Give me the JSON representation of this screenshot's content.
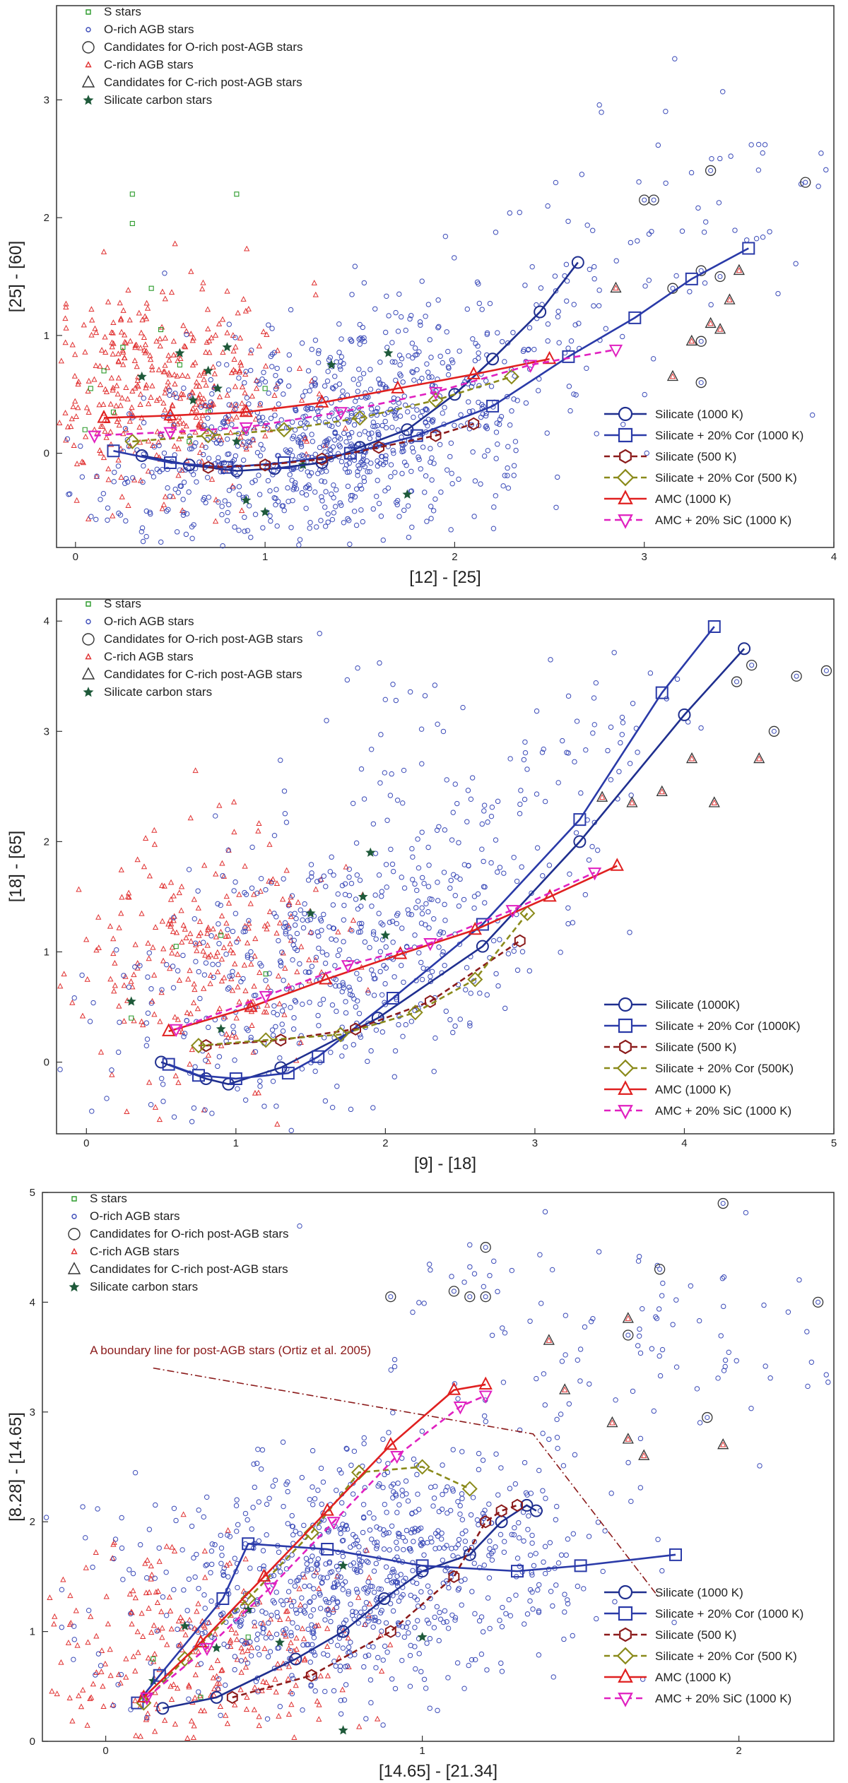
{
  "chart_data": [
    {
      "type": "scatter",
      "xlabel": "[12] - [25]",
      "ylabel": "[25] - [60]",
      "xlim": [
        -0.1,
        4.0
      ],
      "ylim": [
        -0.8,
        3.8
      ],
      "xticks": [
        "0",
        "1",
        "2",
        "3",
        "4"
      ],
      "yticks": [
        "0",
        "1",
        "2",
        "3"
      ],
      "xtick_values": [
        0,
        1,
        2,
        3,
        4
      ],
      "ytick_values": [
        0,
        1,
        2,
        3
      ],
      "legend_top": [
        "S stars",
        "O-rich AGB stars",
        "Candidates for O-rich post-AGB stars",
        "C-rich AGB stars",
        "Candidates for C-rich post-AGB stars",
        "Silicate carbon stars"
      ],
      "legend_bottom": [
        "Silicate (1000 K)",
        "Silicate + 20% Cor (1000 K)",
        "Silicate (500 K)",
        "Silicate + 20% Cor (500 K)",
        "AMC (1000 K)",
        "AMC + 20% SiC (1000 K)"
      ],
      "scatter_clouds": {
        "o_rich": {
          "cx": 1.35,
          "cy": 0.15,
          "sx": 0.55,
          "sy": 0.45,
          "n": 900,
          "tail": [
            [
              2.0,
              0.9
            ],
            [
              2.5,
              1.3
            ],
            [
              3.0,
              1.8
            ],
            [
              3.5,
              2.4
            ]
          ]
        },
        "c_rich": {
          "cx": 0.45,
          "cy": 0.55,
          "sx": 0.35,
          "sy": 0.45,
          "n": 420
        },
        "s_stars": [
          [
            0.05,
            0.2
          ],
          [
            0.08,
            0.55
          ],
          [
            0.15,
            0.7
          ],
          [
            0.25,
            0.9
          ],
          [
            0.3,
            1.95
          ],
          [
            0.3,
            2.2
          ],
          [
            0.45,
            1.05
          ],
          [
            0.55,
            0.75
          ],
          [
            0.7,
            0.35
          ],
          [
            0.85,
            2.2
          ],
          [
            1.0,
            0.55
          ],
          [
            0.4,
            1.4
          ],
          [
            0.6,
            0.1
          ],
          [
            0.2,
            0.35
          ]
        ],
        "silicate_carbon": [
          [
            0.35,
            0.65
          ],
          [
            0.55,
            0.85
          ],
          [
            0.62,
            0.45
          ],
          [
            0.75,
            0.55
          ],
          [
            0.8,
            0.9
          ],
          [
            0.85,
            0.1
          ],
          [
            0.9,
            -0.4
          ],
          [
            1.0,
            -0.5
          ],
          [
            1.2,
            -0.1
          ],
          [
            1.35,
            0.75
          ],
          [
            1.65,
            0.85
          ],
          [
            1.75,
            -0.35
          ],
          [
            0.7,
            0.7
          ]
        ],
        "o_post_agb": [
          [
            3.0,
            2.15
          ],
          [
            3.05,
            2.15
          ],
          [
            3.15,
            1.4
          ],
          [
            3.3,
            1.55
          ],
          [
            3.35,
            2.4
          ],
          [
            3.4,
            1.5
          ],
          [
            3.85,
            2.3
          ],
          [
            3.3,
            0.95
          ],
          [
            3.3,
            0.6
          ]
        ],
        "c_post_agb": [
          [
            2.85,
            1.4
          ],
          [
            3.15,
            0.65
          ],
          [
            3.25,
            0.95
          ],
          [
            3.35,
            1.1
          ],
          [
            3.45,
            1.3
          ],
          [
            3.4,
            1.05
          ],
          [
            3.5,
            1.55
          ]
        ]
      },
      "series": [
        {
          "name": "Silicate (1000 K)",
          "color": "#1f2f8f",
          "dash": "",
          "marker": "circle",
          "x": [
            0.35,
            0.6,
            0.85,
            1.05,
            1.3,
            1.5,
            1.75,
            2.0,
            2.2,
            2.45,
            2.65
          ],
          "y": [
            -0.02,
            -0.1,
            -0.15,
            -0.13,
            -0.08,
            0.05,
            0.2,
            0.5,
            0.8,
            1.2,
            1.62
          ]
        },
        {
          "name": "Silicate + 20% Cor (1000 K)",
          "color": "#2a3aa8",
          "dash": "",
          "marker": "square",
          "x": [
            0.2,
            0.5,
            0.8,
            1.1,
            1.45,
            1.8,
            2.2,
            2.6,
            2.95,
            3.25,
            3.55
          ],
          "y": [
            0.02,
            -0.08,
            -0.12,
            -0.08,
            0.0,
            0.15,
            0.4,
            0.82,
            1.15,
            1.48,
            1.74
          ]
        },
        {
          "name": "Silicate (500 K)",
          "color": "#8b1a1a",
          "dash": "8,5",
          "marker": "hexagon",
          "x": [
            0.7,
            1.0,
            1.3,
            1.6,
            1.9,
            2.1
          ],
          "y": [
            -0.12,
            -0.1,
            -0.05,
            0.05,
            0.15,
            0.25
          ]
        },
        {
          "name": "Silicate + 20% Cor (500 K)",
          "color": "#8a8a1a",
          "dash": "8,5",
          "marker": "diamond",
          "x": [
            0.3,
            0.7,
            1.1,
            1.5,
            1.9,
            2.3
          ],
          "y": [
            0.1,
            0.15,
            0.2,
            0.3,
            0.45,
            0.65
          ]
        },
        {
          "name": "AMC (1000 K)",
          "color": "#e02020",
          "dash": "",
          "marker": "triangle",
          "x": [
            0.15,
            0.5,
            0.9,
            1.3,
            1.7,
            2.1,
            2.5
          ],
          "y": [
            0.3,
            0.32,
            0.35,
            0.43,
            0.55,
            0.67,
            0.8
          ]
        },
        {
          "name": "AMC + 20% SiC (1000 K)",
          "color": "#e020c0",
          "dash": "9,6",
          "marker": "triangle-down",
          "x": [
            0.1,
            0.5,
            0.9,
            1.4,
            1.9,
            2.4,
            2.85
          ],
          "y": [
            0.15,
            0.18,
            0.22,
            0.35,
            0.52,
            0.75,
            0.88
          ]
        }
      ]
    },
    {
      "type": "scatter",
      "xlabel": "[9] - [18]",
      "ylabel": "[18] - [65]",
      "xlim": [
        -0.2,
        5.0
      ],
      "ylim": [
        -0.65,
        4.2
      ],
      "xticks": [
        "0",
        "1",
        "2",
        "3",
        "4",
        "5"
      ],
      "yticks": [
        "0",
        "1",
        "2",
        "3",
        "4"
      ],
      "xtick_values": [
        0,
        1,
        2,
        3,
        4,
        5
      ],
      "ytick_values": [
        0,
        1,
        2,
        3,
        4
      ],
      "legend_top": [
        "S stars",
        "O-rich AGB stars",
        "Candidates for O-rich post-AGB stars",
        "C-rich AGB stars",
        "Candidates for C-rich post-AGB stars",
        "Silicate carbon stars"
      ],
      "legend_bottom": [
        "Silicate (1000K)",
        "Silicate + 20% Cor (1000K)",
        "Silicate (500 K)",
        "Silicate + 20% Cor (500K)",
        "AMC (1000 K)",
        "AMC + 20% SiC (1000 K)"
      ],
      "scatter_clouds": {
        "o_rich": {
          "cx": 1.6,
          "cy": 0.9,
          "sx": 0.7,
          "sy": 0.6,
          "n": 520,
          "tail": [
            [
              2.5,
              1.8
            ],
            [
              3.0,
              2.5
            ],
            [
              3.6,
              3.2
            ],
            [
              2.0,
              3.0
            ]
          ]
        },
        "c_rich": {
          "cx": 0.75,
          "cy": 0.95,
          "sx": 0.45,
          "sy": 0.55,
          "n": 260
        },
        "s_stars": [
          [
            0.6,
            1.05
          ],
          [
            0.9,
            1.15
          ],
          [
            1.2,
            0.8
          ],
          [
            0.3,
            0.4
          ]
        ],
        "silicate_carbon": [
          [
            0.3,
            0.55
          ],
          [
            1.5,
            1.35
          ],
          [
            1.9,
            1.9
          ],
          [
            1.85,
            1.5
          ],
          [
            2.0,
            1.15
          ],
          [
            0.9,
            0.3
          ]
        ],
        "o_post_agb": [
          [
            4.35,
            3.45
          ],
          [
            4.45,
            3.6
          ],
          [
            4.6,
            3.0
          ],
          [
            4.75,
            3.5
          ],
          [
            4.95,
            3.55
          ]
        ],
        "c_post_agb": [
          [
            3.45,
            2.4
          ],
          [
            3.65,
            2.35
          ],
          [
            3.85,
            2.45
          ],
          [
            4.05,
            2.75
          ],
          [
            4.2,
            2.35
          ],
          [
            4.5,
            2.75
          ]
        ]
      },
      "series": [
        {
          "name": "Silicate (1000K)",
          "color": "#1f2f8f",
          "dash": "",
          "marker": "circle",
          "x": [
            0.5,
            0.8,
            0.95,
            1.3,
            1.95,
            2.65,
            3.3,
            4.0,
            4.4
          ],
          "y": [
            0.0,
            -0.15,
            -0.2,
            -0.05,
            0.4,
            1.05,
            2.0,
            3.15,
            3.75
          ]
        },
        {
          "name": "Silicate + 20% Cor (1000K)",
          "color": "#2a3aa8",
          "dash": "",
          "marker": "square",
          "x": [
            0.55,
            0.75,
            1.0,
            1.35,
            1.55,
            2.05,
            2.65,
            3.3,
            3.85,
            4.2
          ],
          "y": [
            -0.02,
            -0.12,
            -0.15,
            -0.1,
            0.05,
            0.58,
            1.25,
            2.2,
            3.35,
            3.95
          ]
        },
        {
          "name": "Silicate (500 K)",
          "color": "#8b1a1a",
          "dash": "8,5",
          "marker": "hexagon",
          "x": [
            0.8,
            1.3,
            1.8,
            2.3,
            2.9
          ],
          "y": [
            0.15,
            0.2,
            0.3,
            0.55,
            1.1
          ]
        },
        {
          "name": "Silicate + 20% Cor (500K)",
          "color": "#8a8a1a",
          "dash": "8,5",
          "marker": "diamond",
          "x": [
            0.75,
            1.2,
            1.7,
            2.2,
            2.6,
            2.95
          ],
          "y": [
            0.15,
            0.2,
            0.25,
            0.45,
            0.75,
            1.35
          ]
        },
        {
          "name": "AMC (1000 K)",
          "color": "#e02020",
          "dash": "",
          "marker": "triangle",
          "x": [
            0.55,
            1.1,
            1.6,
            2.1,
            2.6,
            3.1,
            3.55
          ],
          "y": [
            0.28,
            0.5,
            0.75,
            0.98,
            1.2,
            1.5,
            1.78
          ]
        },
        {
          "name": "AMC + 20% SiC (1000 K)",
          "color": "#e020c0",
          "dash": "9,6",
          "marker": "triangle-down",
          "x": [
            0.6,
            1.2,
            1.75,
            2.3,
            2.85,
            3.4
          ],
          "y": [
            0.3,
            0.6,
            0.88,
            1.08,
            1.38,
            1.72
          ]
        }
      ]
    },
    {
      "type": "scatter",
      "xlabel": "[14.65] - [21.34]",
      "ylabel": "[8.28] - [14.65]",
      "xlim": [
        -0.2,
        2.3
      ],
      "ylim": [
        0.0,
        5.0
      ],
      "xticks": [
        "0",
        "1",
        "2"
      ],
      "yticks": [
        "0",
        "1",
        "2",
        "3",
        "4",
        "5"
      ],
      "xtick_values": [
        0,
        1,
        2
      ],
      "ytick_values": [
        0,
        1,
        2,
        3,
        4,
        5
      ],
      "legend_top": [
        "S stars",
        "O-rich AGB stars",
        "Candidates for O-rich post-AGB stars",
        "C-rich AGB stars",
        "Candidates for C-rich post-AGB stars",
        "Silicate carbon stars"
      ],
      "legend_bottom": [
        "Silicate (1000 K)",
        "Silicate + 20% Cor (1000 K)",
        "Silicate (500 K)",
        "Silicate + 20% Cor (500 K)",
        "AMC (1000 K)",
        "AMC + 20% SiC (1000 K)"
      ],
      "annotation": "A boundary line for post-AGB stars (Ortiz et al. 2005)",
      "boundary_line": {
        "x": [
          0.15,
          1.35,
          1.75
        ],
        "y": [
          3.4,
          2.8,
          1.3
        ]
      },
      "scatter_clouds": {
        "o_rich": {
          "cx": 0.8,
          "cy": 1.5,
          "sx": 0.35,
          "sy": 0.55,
          "n": 900,
          "tail": [
            [
              1.5,
              3.2
            ],
            [
              1.8,
              4.0
            ],
            [
              2.0,
              3.5
            ],
            [
              1.2,
              4.3
            ]
          ]
        },
        "c_rich": {
          "cx": 0.3,
          "cy": 0.85,
          "sx": 0.25,
          "sy": 0.5,
          "n": 300
        },
        "s_stars": [
          [
            0.15,
            0.75
          ],
          [
            0.3,
            0.4
          ],
          [
            0.45,
            0.95
          ]
        ],
        "silicate_carbon": [
          [
            0.15,
            0.55
          ],
          [
            0.25,
            1.05
          ],
          [
            0.35,
            0.85
          ],
          [
            0.55,
            0.9
          ],
          [
            0.75,
            1.6
          ],
          [
            0.75,
            0.1
          ],
          [
            1.0,
            0.95
          ],
          [
            0.45,
            1.2
          ]
        ],
        "o_post_agb": [
          [
            0.9,
            4.05
          ],
          [
            1.1,
            4.1
          ],
          [
            1.15,
            4.05
          ],
          [
            1.2,
            4.05
          ],
          [
            1.2,
            4.5
          ],
          [
            1.65,
            3.7
          ],
          [
            1.75,
            4.3
          ],
          [
            1.9,
            2.95
          ],
          [
            1.95,
            4.9
          ],
          [
            2.25,
            4.0
          ]
        ],
        "c_post_agb": [
          [
            1.4,
            3.65
          ],
          [
            1.45,
            3.2
          ],
          [
            1.6,
            2.9
          ],
          [
            1.65,
            3.85
          ],
          [
            1.65,
            2.75
          ],
          [
            1.7,
            2.6
          ],
          [
            1.95,
            2.7
          ]
        ]
      },
      "series": [
        {
          "name": "Silicate (1000 K)",
          "color": "#1f2f8f",
          "dash": "",
          "marker": "circle",
          "x": [
            0.18,
            0.35,
            0.6,
            0.75,
            0.88,
            1.0,
            1.15,
            1.25,
            1.33,
            1.36
          ],
          "y": [
            0.3,
            0.4,
            0.75,
            1.0,
            1.3,
            1.55,
            1.7,
            2.0,
            2.15,
            2.1
          ]
        },
        {
          "name": "Silicate + 20% Cor (1000 K)",
          "color": "#2a3aa8",
          "dash": "",
          "marker": "square",
          "x": [
            0.1,
            0.17,
            0.37,
            0.45,
            0.7,
            1.0,
            1.3,
            1.5,
            1.8
          ],
          "y": [
            0.35,
            0.6,
            1.3,
            1.8,
            1.75,
            1.6,
            1.55,
            1.6,
            1.7
          ]
        },
        {
          "name": "Silicate (500 K)",
          "color": "#8b1a1a",
          "dash": "8,5",
          "marker": "hexagon",
          "x": [
            0.4,
            0.65,
            0.9,
            1.1,
            1.2,
            1.25,
            1.3
          ],
          "y": [
            0.4,
            0.6,
            1.0,
            1.5,
            2.0,
            2.1,
            2.15
          ]
        },
        {
          "name": "Silicate + 20% Cor (500 K)",
          "color": "#8a8a1a",
          "dash": "8,5",
          "marker": "diamond",
          "x": [
            0.12,
            0.25,
            0.45,
            0.65,
            0.8,
            1.0,
            1.15
          ],
          "y": [
            0.35,
            0.75,
            1.3,
            1.9,
            2.45,
            2.5,
            2.3
          ]
        },
        {
          "name": "AMC (1000 K)",
          "color": "#e02020",
          "dash": "",
          "marker": "triangle",
          "x": [
            0.12,
            0.3,
            0.5,
            0.7,
            0.9,
            1.1,
            1.2
          ],
          "y": [
            0.4,
            0.9,
            1.5,
            2.1,
            2.7,
            3.2,
            3.25
          ]
        },
        {
          "name": "AMC + 20% SiC (1000 K)",
          "color": "#e020c0",
          "dash": "9,6",
          "marker": "triangle-down",
          "x": [
            0.13,
            0.32,
            0.52,
            0.72,
            0.92,
            1.12,
            1.2
          ],
          "y": [
            0.4,
            0.85,
            1.4,
            2.0,
            2.6,
            3.05,
            3.15
          ]
        }
      ]
    }
  ],
  "legend_colors": {
    "s_stars": "#2a9a2a",
    "o_rich": "#3a4ab8",
    "c_rich": "#e03030",
    "silicate_carbon": "#1f5a3a",
    "post_agb_candidate": "#333333"
  }
}
